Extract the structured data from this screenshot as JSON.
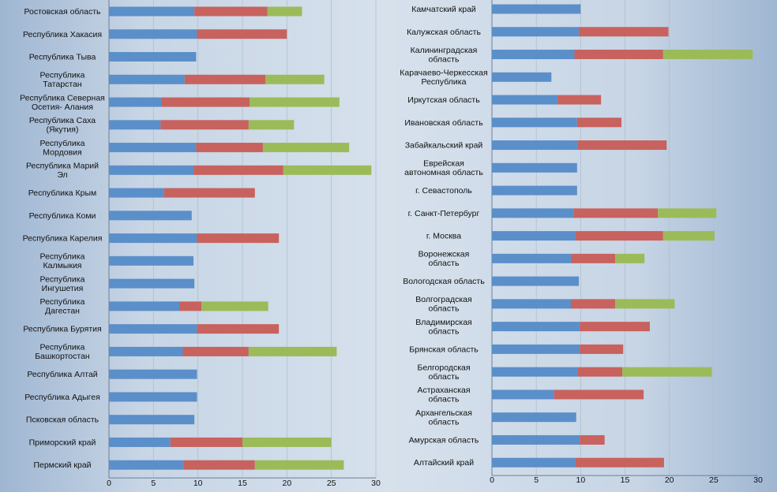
{
  "chart_data": [
    {
      "type": "bar",
      "orientation": "horizontal",
      "stacked": true,
      "xlim": [
        0,
        30
      ],
      "ticks": [
        0,
        5,
        10,
        15,
        20,
        25,
        30
      ],
      "grid": true,
      "colors": [
        "#5b8fc9",
        "#c8625e",
        "#9bbb59"
      ],
      "categories": [
        "Ростовская область",
        "Республика Хакасия",
        "Республика Тыва",
        "Республика\nТатарстан",
        "Республика Северная\nОсетия- Алания",
        "Республика Саха\n(Якутия)",
        "Республика\nМордовия",
        "Республика Марий\nЭл",
        "Республика Крым",
        "Республика Коми",
        "Республика Карелия",
        "Республика\nКалмыкия",
        "Республика\nИнгушетия",
        "Республика\nДагестан",
        "Республика Бурятия",
        "Республика\nБашкортостан",
        "Республика Алтай",
        "Республика Адыгея",
        "Псковская область",
        "Приморский край",
        "Пермский край"
      ],
      "series": [
        {
          "values": [
            9.6,
            9.9,
            9.8,
            8.5,
            5.9,
            5.8,
            9.8,
            9.5,
            6.2,
            9.3,
            9.9,
            9.5,
            9.6,
            7.9,
            9.9,
            8.3,
            9.9,
            9.9,
            9.6,
            6.9,
            8.4
          ]
        },
        {
          "values": [
            8.2,
            10.1,
            0,
            9.1,
            9.9,
            9.9,
            7.5,
            10.1,
            10.2,
            0,
            9.2,
            0,
            0,
            2.5,
            9.2,
            7.4,
            0,
            0,
            0,
            8.1,
            8.0
          ]
        },
        {
          "values": [
            3.9,
            0,
            0,
            6.6,
            10.1,
            5.1,
            9.7,
            9.9,
            0,
            0,
            0,
            0,
            0,
            7.5,
            0,
            9.9,
            0,
            0,
            0,
            10.0,
            10.0
          ]
        }
      ]
    },
    {
      "type": "bar",
      "orientation": "horizontal",
      "stacked": true,
      "xlim": [
        0,
        30
      ],
      "ticks": [
        0,
        5,
        10,
        15,
        20,
        25,
        30
      ],
      "grid": true,
      "colors": [
        "#5b8fc9",
        "#c8625e",
        "#9bbb59"
      ],
      "categories": [
        "Камчатский край",
        "Калужская область",
        "Калининградская\nобласть",
        "Карачаево-Черкесская\nРеспублика",
        "Иркутская область",
        "Ивановская область",
        "Забайкальский край",
        "Еврейская\nавтономная область",
        "г. Севастополь",
        "г. Санкт-Петербург",
        "г. Москва",
        "Воронежская\nобласть",
        "Вологодская область",
        "Волгоградская\nобласть",
        "Владимирская\nобласть",
        "Брянская область",
        "Белгородская\nобласть",
        "Астраханская\nобласть",
        "Архангельская\nобласть",
        "Амурская область",
        "Алтайский край"
      ],
      "series": [
        {
          "values": [
            10.0,
            9.8,
            9.3,
            6.7,
            7.4,
            9.6,
            9.7,
            9.6,
            9.6,
            9.2,
            9.4,
            8.9,
            9.8,
            8.9,
            9.9,
            9.9,
            9.7,
            7.0,
            9.5,
            9.9,
            9.4
          ]
        },
        {
          "values": [
            0,
            10.1,
            10.0,
            0,
            4.9,
            5.0,
            10.0,
            0,
            0,
            9.5,
            9.9,
            5.0,
            0,
            5.0,
            7.9,
            4.9,
            5.0,
            10.1,
            0,
            2.8,
            10.0
          ]
        },
        {
          "values": [
            0,
            0,
            10.1,
            0,
            0,
            0,
            0,
            0,
            0,
            6.6,
            5.8,
            3.3,
            0,
            6.7,
            0,
            0,
            10.1,
            0,
            0,
            0,
            0
          ]
        }
      ]
    }
  ]
}
